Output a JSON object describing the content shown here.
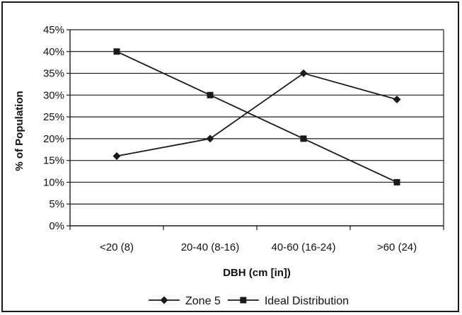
{
  "chart_data": {
    "type": "line",
    "categories": [
      "<20 (8)",
      "20-40 (8-16)",
      "40-60 (16-24)",
      ">60 (24)"
    ],
    "series": [
      {
        "name": "Zone 5",
        "marker": "diamond",
        "values": [
          16,
          20,
          35,
          29
        ]
      },
      {
        "name": "Ideal Distribution",
        "marker": "square",
        "values": [
          40,
          30,
          20,
          10
        ]
      }
    ],
    "xlabel": "DBH (cm [in])",
    "ylabel": "% of Population",
    "ylim": [
      0,
      45
    ],
    "yticks": [
      "0%",
      "5%",
      "10%",
      "15%",
      "20%",
      "25%",
      "30%",
      "35%",
      "40%",
      "45%"
    ],
    "grid": true,
    "legend": "bottom",
    "colors": {
      "line": "#1a1a1a",
      "grid": "#1a1a1a",
      "background": "#ffffff"
    }
  }
}
